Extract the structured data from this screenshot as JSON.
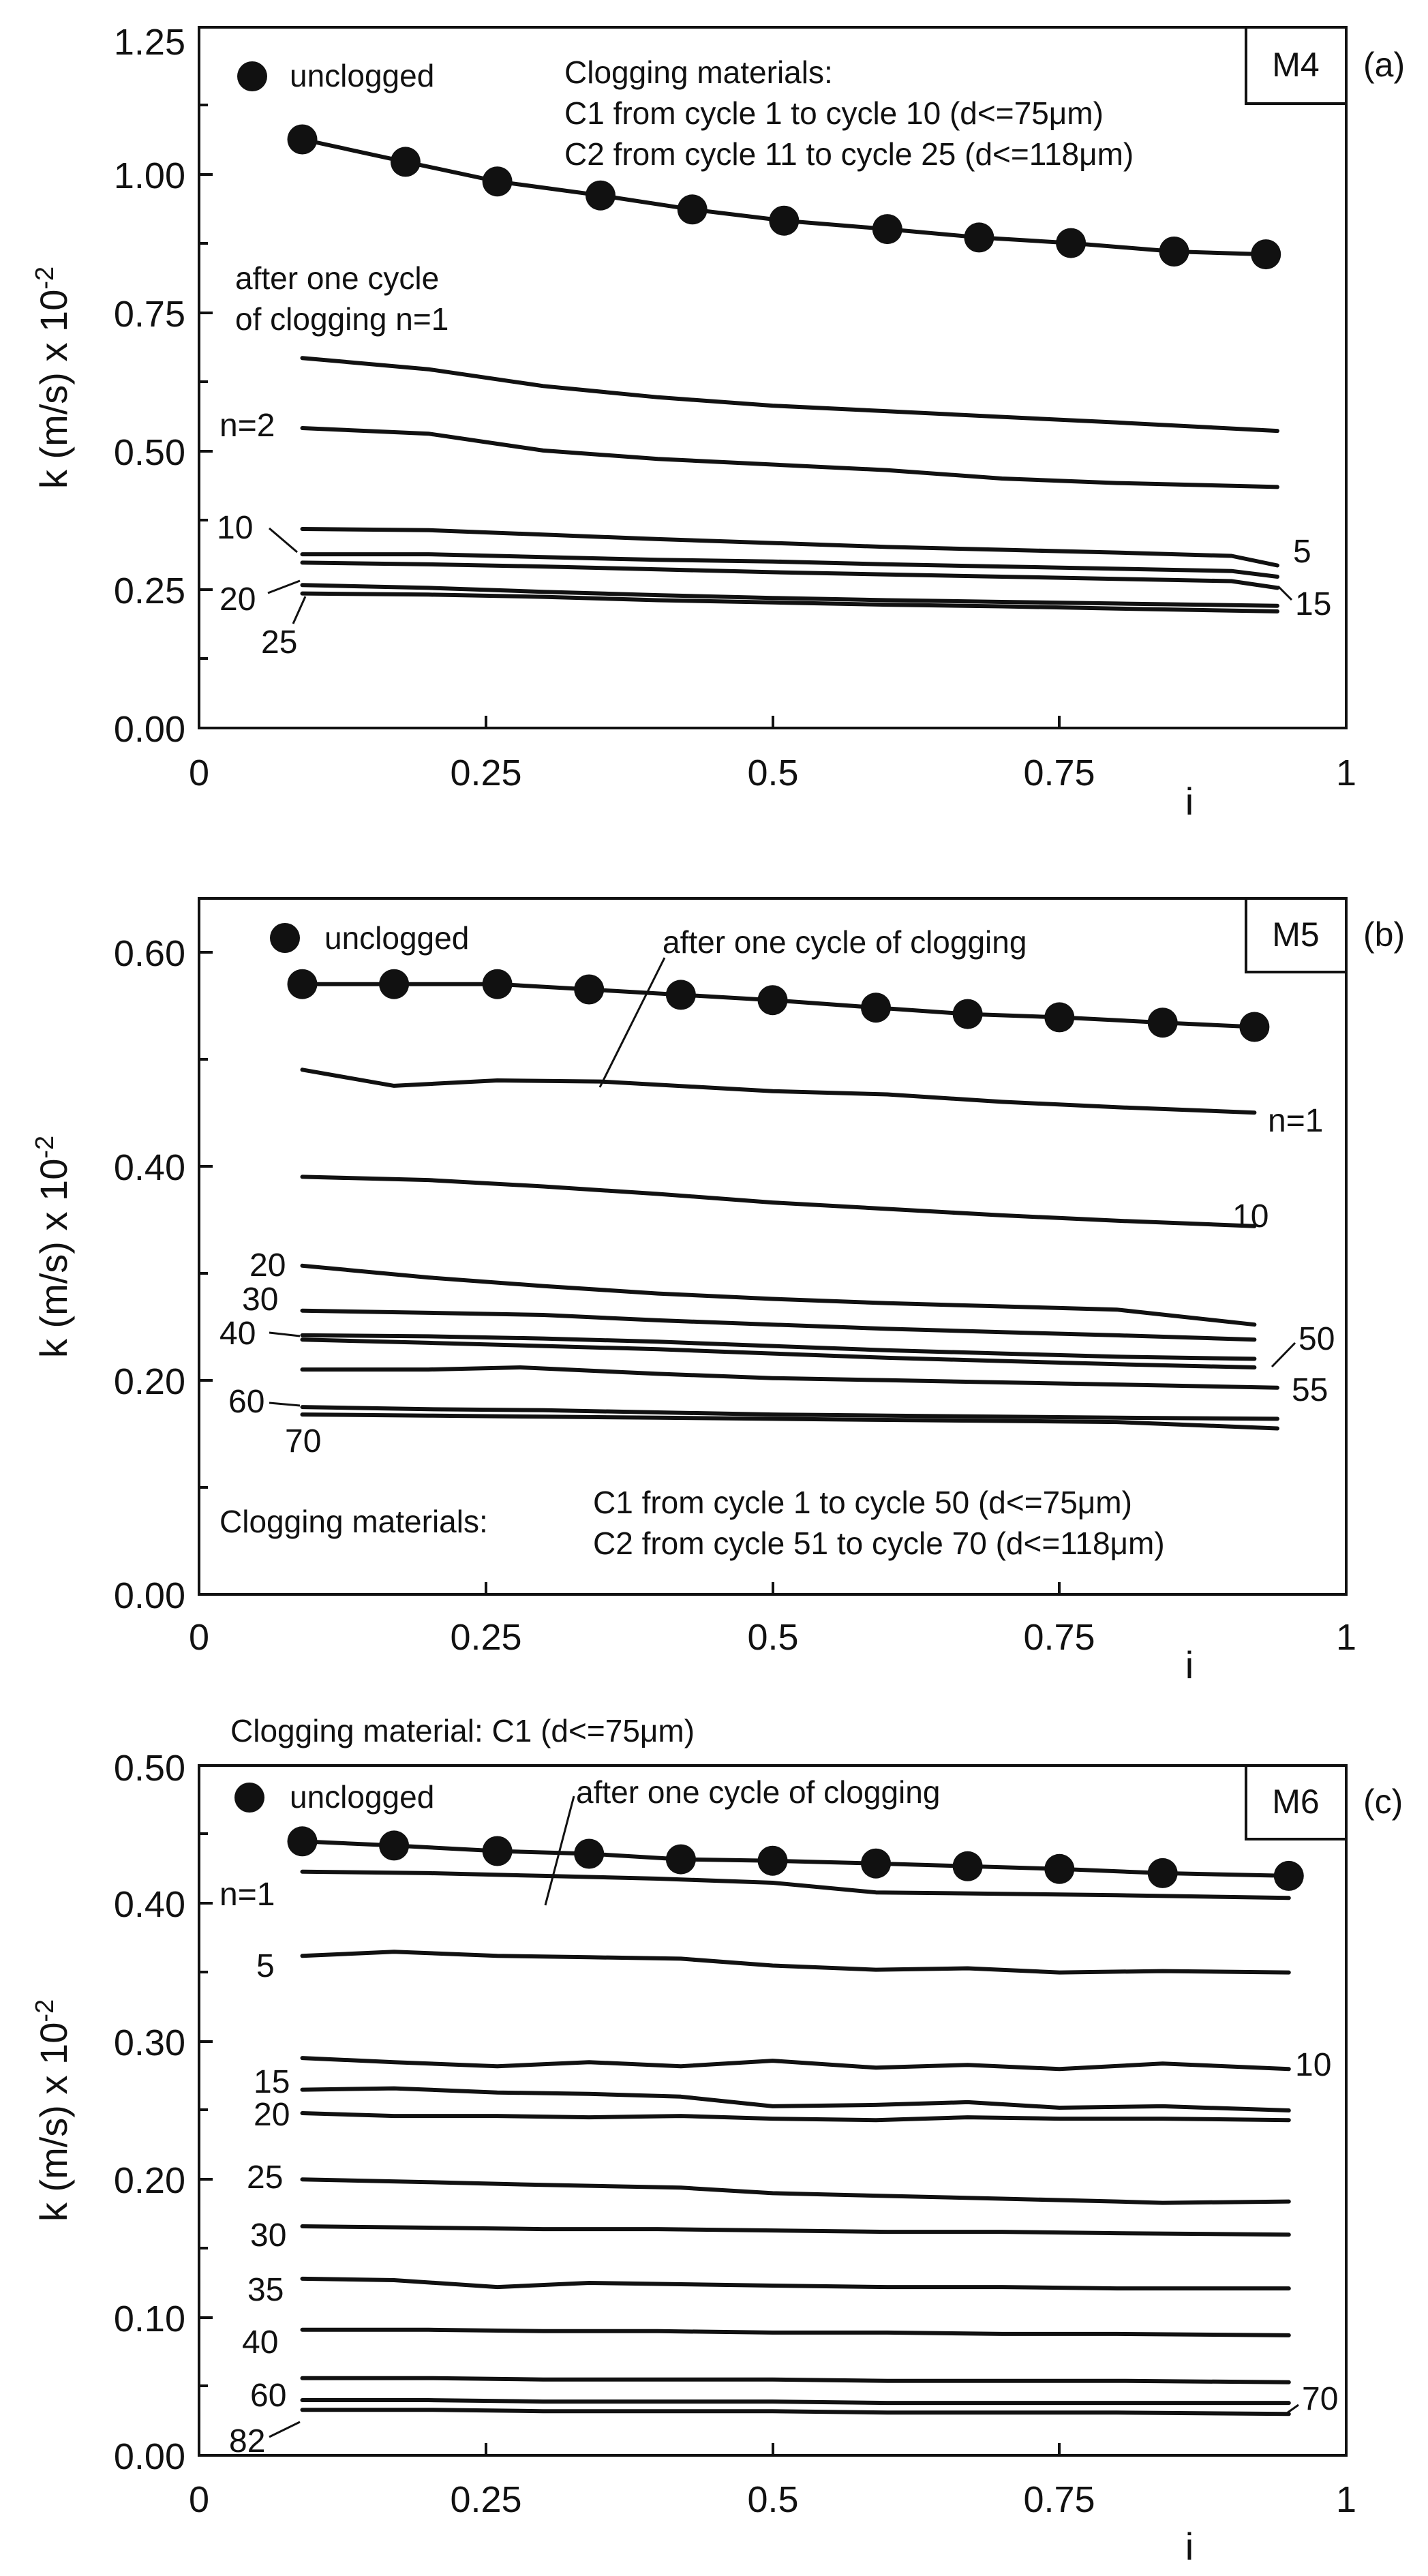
{
  "figure": {
    "y_axis_label": "k (m/s) x 10",
    "y_axis_exponent": "-2",
    "x_axis_label": "i"
  },
  "chart_data": [
    {
      "type": "line",
      "panel": "(a)",
      "model": "M4",
      "xlabel": "i",
      "ylabel": "k (m/s) x 10-2",
      "xlim": [
        0,
        1
      ],
      "ylim": [
        0,
        1.25
      ],
      "xticks": [
        "0",
        "0.25",
        "0.5",
        "0.75",
        "1"
      ],
      "yticks": [
        "0.00",
        "0.25",
        "0.50",
        "0.75",
        "1.00",
        "1.25"
      ],
      "legend": "unclogged",
      "annotations": [
        "Clogging materials:",
        "C1 from cycle 1 to cycle 10 (d<=75μm)",
        "C2 from cycle 11 to cycle 25 (d<=118μm)",
        "after one cycle",
        "of clogging n=1"
      ],
      "series": [
        {
          "name": "unclogged",
          "markers": true,
          "x": [
            0.09,
            0.18,
            0.26,
            0.35,
            0.43,
            0.51,
            0.6,
            0.68,
            0.76,
            0.85,
            0.93
          ],
          "values": [
            1.05,
            1.01,
            0.975,
            0.95,
            0.925,
            0.905,
            0.89,
            0.875,
            0.865,
            0.85,
            0.845
          ]
        },
        {
          "name": "n=1",
          "x": [
            0.09,
            0.2,
            0.3,
            0.4,
            0.5,
            0.6,
            0.7,
            0.8,
            0.94
          ],
          "values": [
            0.66,
            0.64,
            0.61,
            0.59,
            0.575,
            0.565,
            0.555,
            0.545,
            0.53
          ]
        },
        {
          "name": "n=2",
          "x": [
            0.09,
            0.2,
            0.3,
            0.4,
            0.5,
            0.6,
            0.7,
            0.8,
            0.94
          ],
          "values": [
            0.535,
            0.525,
            0.495,
            0.48,
            0.47,
            0.46,
            0.445,
            0.437,
            0.43
          ]
        },
        {
          "name": "5",
          "x": [
            0.09,
            0.2,
            0.3,
            0.4,
            0.5,
            0.6,
            0.7,
            0.8,
            0.9,
            0.94
          ],
          "values": [
            0.355,
            0.353,
            0.345,
            0.337,
            0.33,
            0.323,
            0.318,
            0.313,
            0.307,
            0.29
          ]
        },
        {
          "name": "10",
          "x": [
            0.09,
            0.2,
            0.3,
            0.4,
            0.5,
            0.6,
            0.7,
            0.8,
            0.9,
            0.94
          ],
          "values": [
            0.31,
            0.31,
            0.305,
            0.3,
            0.297,
            0.292,
            0.288,
            0.284,
            0.28,
            0.27
          ]
        },
        {
          "name": "15",
          "x": [
            0.09,
            0.2,
            0.3,
            0.4,
            0.5,
            0.6,
            0.7,
            0.8,
            0.9,
            0.94
          ],
          "values": [
            0.295,
            0.292,
            0.288,
            0.283,
            0.278,
            0.274,
            0.27,
            0.266,
            0.262,
            0.25
          ]
        },
        {
          "name": "20",
          "x": [
            0.09,
            0.2,
            0.3,
            0.4,
            0.5,
            0.6,
            0.7,
            0.8,
            0.94
          ],
          "values": [
            0.255,
            0.25,
            0.243,
            0.237,
            0.232,
            0.228,
            0.225,
            0.222,
            0.218
          ]
        },
        {
          "name": "25",
          "x": [
            0.09,
            0.2,
            0.3,
            0.4,
            0.5,
            0.6,
            0.7,
            0.8,
            0.94
          ],
          "values": [
            0.24,
            0.238,
            0.234,
            0.228,
            0.224,
            0.22,
            0.217,
            0.213,
            0.208
          ]
        }
      ],
      "series_labels": {
        "n=2": "n=2",
        "10": "10",
        "5": "5",
        "20": "20",
        "25": "25",
        "15": "15"
      }
    },
    {
      "type": "line",
      "panel": "(b)",
      "model": "M5",
      "xlabel": "i",
      "ylabel": "k (m/s) x 10-2",
      "xlim": [
        0,
        1
      ],
      "ylim": [
        0,
        0.65
      ],
      "xticks": [
        "0",
        "0.25",
        "0.5",
        "0.75",
        "1"
      ],
      "yticks": [
        "0.00",
        "0.20",
        "0.40",
        "0.60"
      ],
      "legend": "unclogged",
      "annotations": [
        "after one cycle of clogging",
        "Clogging materials:",
        "C1 from cycle 1 to cycle 50 (d<=75μm)",
        "C2 from cycle 51 to cycle 70 (d<=118μm)"
      ],
      "series": [
        {
          "name": "unclogged",
          "markers": true,
          "x": [
            0.09,
            0.17,
            0.26,
            0.34,
            0.42,
            0.5,
            0.59,
            0.67,
            0.75,
            0.84,
            0.92
          ],
          "values": [
            0.57,
            0.57,
            0.57,
            0.565,
            0.56,
            0.555,
            0.548,
            0.542,
            0.539,
            0.534,
            0.53
          ]
        },
        {
          "name": "n=1",
          "x": [
            0.09,
            0.17,
            0.26,
            0.35,
            0.5,
            0.6,
            0.7,
            0.8,
            0.92
          ],
          "values": [
            0.49,
            0.475,
            0.48,
            0.479,
            0.47,
            0.467,
            0.46,
            0.455,
            0.45
          ]
        },
        {
          "name": "10",
          "x": [
            0.09,
            0.2,
            0.3,
            0.4,
            0.5,
            0.6,
            0.7,
            0.8,
            0.92
          ],
          "values": [
            0.39,
            0.387,
            0.381,
            0.374,
            0.366,
            0.36,
            0.354,
            0.349,
            0.344
          ]
        },
        {
          "name": "20",
          "x": [
            0.09,
            0.2,
            0.3,
            0.4,
            0.5,
            0.6,
            0.7,
            0.8,
            0.92
          ],
          "values": [
            0.307,
            0.296,
            0.288,
            0.281,
            0.276,
            0.272,
            0.269,
            0.266,
            0.252
          ]
        },
        {
          "name": "30",
          "x": [
            0.09,
            0.2,
            0.3,
            0.4,
            0.5,
            0.6,
            0.7,
            0.8,
            0.92
          ],
          "values": [
            0.265,
            0.263,
            0.261,
            0.256,
            0.252,
            0.248,
            0.245,
            0.242,
            0.238
          ]
        },
        {
          "name": "40",
          "x": [
            0.09,
            0.2,
            0.3,
            0.4,
            0.5,
            0.6,
            0.7,
            0.8,
            0.92
          ],
          "values": [
            0.242,
            0.241,
            0.239,
            0.236,
            0.232,
            0.228,
            0.225,
            0.222,
            0.22
          ]
        },
        {
          "name": "50",
          "x": [
            0.09,
            0.2,
            0.3,
            0.4,
            0.5,
            0.6,
            0.7,
            0.8,
            0.92
          ],
          "values": [
            0.238,
            0.235,
            0.232,
            0.229,
            0.225,
            0.221,
            0.218,
            0.215,
            0.212
          ]
        },
        {
          "name": "55",
          "x": [
            0.09,
            0.2,
            0.28,
            0.4,
            0.5,
            0.6,
            0.7,
            0.8,
            0.94
          ],
          "values": [
            0.21,
            0.21,
            0.212,
            0.206,
            0.202,
            0.2,
            0.198,
            0.196,
            0.193
          ]
        },
        {
          "name": "60",
          "x": [
            0.09,
            0.2,
            0.3,
            0.4,
            0.5,
            0.6,
            0.7,
            0.8,
            0.94
          ],
          "values": [
            0.175,
            0.173,
            0.172,
            0.17,
            0.168,
            0.167,
            0.166,
            0.165,
            0.164
          ]
        },
        {
          "name": "70",
          "x": [
            0.09,
            0.2,
            0.3,
            0.4,
            0.5,
            0.6,
            0.7,
            0.8,
            0.94
          ],
          "values": [
            0.168,
            0.167,
            0.166,
            0.165,
            0.164,
            0.163,
            0.162,
            0.161,
            0.155
          ]
        }
      ],
      "series_labels": {
        "n=1": "n=1",
        "10": "10",
        "20": "20",
        "30": "30",
        "40": "40",
        "50": "50",
        "55": "55",
        "60": "60",
        "70": "70"
      }
    },
    {
      "type": "line",
      "panel": "(c)",
      "model": "M6",
      "xlabel": "i",
      "ylabel": "k (m/s) x 10-2",
      "xlim": [
        0,
        1
      ],
      "ylim": [
        0,
        0.5
      ],
      "xticks": [
        "0",
        "0.25",
        "0.5",
        "0.75",
        "1"
      ],
      "yticks": [
        "0.00",
        "0.10",
        "0.20",
        "0.30",
        "0.40",
        "0.50"
      ],
      "legend": "unclogged",
      "annotations": [
        "Clogging material: C1 (d<=75μm)",
        "after one cycle of clogging"
      ],
      "series": [
        {
          "name": "unclogged",
          "markers": true,
          "x": [
            0.09,
            0.17,
            0.26,
            0.34,
            0.42,
            0.5,
            0.59,
            0.67,
            0.75,
            0.84,
            0.95
          ],
          "values": [
            0.445,
            0.442,
            0.438,
            0.436,
            0.432,
            0.431,
            0.429,
            0.427,
            0.425,
            0.422,
            0.42
          ]
        },
        {
          "name": "n=1",
          "x": [
            0.09,
            0.2,
            0.3,
            0.4,
            0.5,
            0.59,
            0.7,
            0.8,
            0.95
          ],
          "values": [
            0.423,
            0.422,
            0.42,
            0.418,
            0.415,
            0.408,
            0.407,
            0.406,
            0.404
          ]
        },
        {
          "name": "5",
          "x": [
            0.09,
            0.17,
            0.26,
            0.34,
            0.42,
            0.5,
            0.59,
            0.67,
            0.75,
            0.84,
            0.95
          ],
          "values": [
            0.362,
            0.365,
            0.362,
            0.361,
            0.36,
            0.355,
            0.352,
            0.353,
            0.35,
            0.351,
            0.35
          ]
        },
        {
          "name": "10",
          "x": [
            0.09,
            0.17,
            0.26,
            0.34,
            0.42,
            0.5,
            0.59,
            0.67,
            0.75,
            0.84,
            0.95
          ],
          "values": [
            0.288,
            0.285,
            0.282,
            0.285,
            0.282,
            0.286,
            0.281,
            0.283,
            0.28,
            0.284,
            0.28
          ]
        },
        {
          "name": "15",
          "x": [
            0.09,
            0.17,
            0.26,
            0.34,
            0.42,
            0.5,
            0.59,
            0.67,
            0.75,
            0.84,
            0.95
          ],
          "values": [
            0.265,
            0.266,
            0.263,
            0.262,
            0.26,
            0.253,
            0.254,
            0.256,
            0.252,
            0.253,
            0.25
          ]
        },
        {
          "name": "20",
          "x": [
            0.09,
            0.17,
            0.26,
            0.34,
            0.42,
            0.5,
            0.59,
            0.67,
            0.75,
            0.84,
            0.95
          ],
          "values": [
            0.248,
            0.246,
            0.246,
            0.245,
            0.246,
            0.244,
            0.243,
            0.245,
            0.244,
            0.244,
            0.243
          ]
        },
        {
          "name": "25",
          "x": [
            0.09,
            0.2,
            0.3,
            0.42,
            0.5,
            0.6,
            0.7,
            0.8,
            0.84,
            0.95
          ],
          "values": [
            0.2,
            0.198,
            0.196,
            0.194,
            0.19,
            0.188,
            0.186,
            0.184,
            0.183,
            0.184
          ]
        },
        {
          "name": "30",
          "x": [
            0.09,
            0.2,
            0.3,
            0.4,
            0.5,
            0.6,
            0.7,
            0.8,
            0.95
          ],
          "values": [
            0.166,
            0.165,
            0.164,
            0.164,
            0.163,
            0.162,
            0.162,
            0.161,
            0.16
          ]
        },
        {
          "name": "35",
          "x": [
            0.09,
            0.17,
            0.26,
            0.34,
            0.42,
            0.5,
            0.6,
            0.7,
            0.8,
            0.95
          ],
          "values": [
            0.128,
            0.127,
            0.122,
            0.125,
            0.124,
            0.123,
            0.122,
            0.122,
            0.121,
            0.121
          ]
        },
        {
          "name": "40",
          "x": [
            0.09,
            0.2,
            0.3,
            0.4,
            0.5,
            0.6,
            0.7,
            0.8,
            0.95
          ],
          "values": [
            0.091,
            0.091,
            0.09,
            0.09,
            0.089,
            0.089,
            0.088,
            0.088,
            0.087
          ]
        },
        {
          "name": "60",
          "x": [
            0.09,
            0.2,
            0.3,
            0.4,
            0.5,
            0.6,
            0.7,
            0.8,
            0.95
          ],
          "values": [
            0.056,
            0.056,
            0.055,
            0.055,
            0.055,
            0.054,
            0.054,
            0.054,
            0.053
          ]
        },
        {
          "name": "70",
          "x": [
            0.09,
            0.2,
            0.3,
            0.4,
            0.5,
            0.6,
            0.7,
            0.8,
            0.95
          ],
          "values": [
            0.04,
            0.04,
            0.039,
            0.039,
            0.039,
            0.038,
            0.038,
            0.038,
            0.038
          ]
        },
        {
          "name": "82",
          "x": [
            0.09,
            0.2,
            0.3,
            0.4,
            0.5,
            0.6,
            0.7,
            0.8,
            0.95
          ],
          "values": [
            0.033,
            0.033,
            0.032,
            0.032,
            0.032,
            0.031,
            0.031,
            0.031,
            0.03
          ]
        }
      ],
      "series_labels": {
        "n=1": "n=1",
        "5": "5",
        "10": "10",
        "15": "15",
        "20": "20",
        "25": "25",
        "30": "30",
        "35": "35",
        "40": "40",
        "60": "60",
        "70": "70",
        "82": "82"
      }
    }
  ]
}
